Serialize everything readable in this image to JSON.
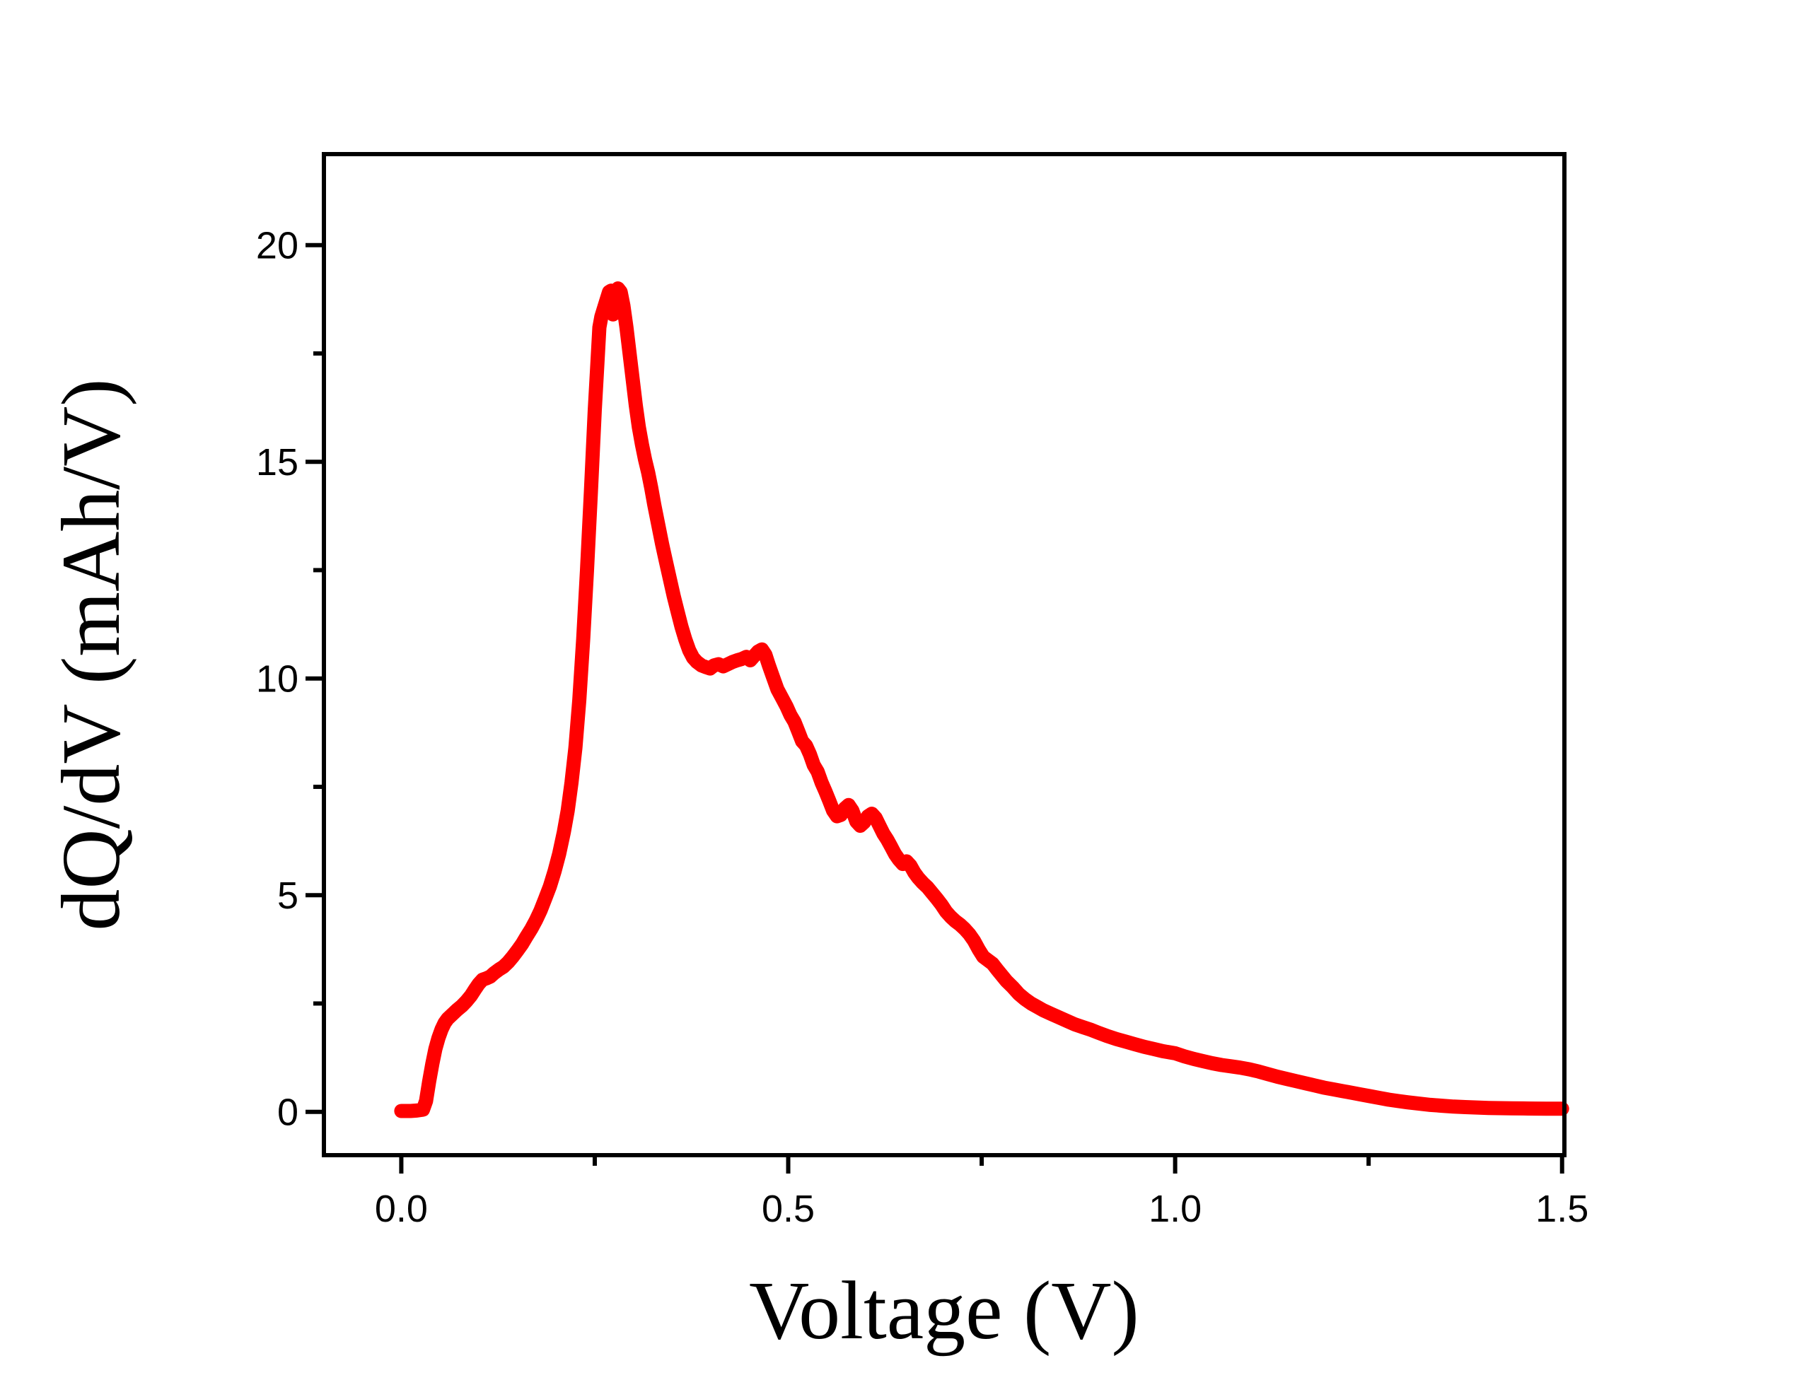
{
  "figure": {
    "background": "#FFFFFF",
    "axis_color": "#000000",
    "curve_color": "#FF0000"
  },
  "chart_data": {
    "type": "line",
    "title": "",
    "xlabel": "Voltage (V)",
    "ylabel": "dQ/dV (mAh/V)",
    "xlim": [
      -0.1,
      1.503
    ],
    "ylim": [
      -1.0,
      22.1
    ],
    "grid": false,
    "legend": null,
    "x_ticks": {
      "major": [
        {
          "v": 0.0,
          "label": "0.0"
        },
        {
          "v": 0.5,
          "label": "0.5"
        },
        {
          "v": 1.0,
          "label": "1.0"
        },
        {
          "v": 1.5,
          "label": "1.5"
        }
      ],
      "minor": [
        0.25,
        0.75,
        1.25
      ]
    },
    "y_ticks": {
      "major": [
        {
          "v": 0,
          "label": "0"
        },
        {
          "v": 5,
          "label": "5"
        },
        {
          "v": 10,
          "label": "10"
        },
        {
          "v": 15,
          "label": "15"
        },
        {
          "v": 20,
          "label": "20"
        }
      ],
      "minor": [
        2.5,
        7.5,
        12.5,
        17.5
      ]
    },
    "series": [
      {
        "name": "dQ/dV",
        "color": "#FF0000",
        "stroke_width": 20,
        "points": [
          [
            0.0,
            0.02
          ],
          [
            0.012,
            0.02
          ],
          [
            0.02,
            0.03
          ],
          [
            0.028,
            0.05
          ],
          [
            0.032,
            0.25
          ],
          [
            0.036,
            0.7
          ],
          [
            0.04,
            1.1
          ],
          [
            0.044,
            1.45
          ],
          [
            0.048,
            1.7
          ],
          [
            0.052,
            1.9
          ],
          [
            0.056,
            2.05
          ],
          [
            0.06,
            2.15
          ],
          [
            0.066,
            2.25
          ],
          [
            0.072,
            2.35
          ],
          [
            0.078,
            2.44
          ],
          [
            0.084,
            2.55
          ],
          [
            0.09,
            2.68
          ],
          [
            0.095,
            2.82
          ],
          [
            0.1,
            2.95
          ],
          [
            0.105,
            3.05
          ],
          [
            0.11,
            3.08
          ],
          [
            0.115,
            3.12
          ],
          [
            0.12,
            3.2
          ],
          [
            0.126,
            3.28
          ],
          [
            0.132,
            3.35
          ],
          [
            0.138,
            3.45
          ],
          [
            0.144,
            3.58
          ],
          [
            0.15,
            3.72
          ],
          [
            0.156,
            3.87
          ],
          [
            0.162,
            4.05
          ],
          [
            0.168,
            4.22
          ],
          [
            0.174,
            4.42
          ],
          [
            0.18,
            4.65
          ],
          [
            0.186,
            4.92
          ],
          [
            0.192,
            5.2
          ],
          [
            0.198,
            5.55
          ],
          [
            0.204,
            5.95
          ],
          [
            0.21,
            6.45
          ],
          [
            0.215,
            6.95
          ],
          [
            0.22,
            7.6
          ],
          [
            0.225,
            8.4
          ],
          [
            0.23,
            9.5
          ],
          [
            0.235,
            10.9
          ],
          [
            0.24,
            12.5
          ],
          [
            0.245,
            14.3
          ],
          [
            0.25,
            16.2
          ],
          [
            0.2535,
            17.3
          ],
          [
            0.256,
            18.1
          ],
          [
            0.2585,
            18.35
          ],
          [
            0.262,
            18.55
          ],
          [
            0.2655,
            18.75
          ],
          [
            0.2685,
            18.92
          ],
          [
            0.2712,
            18.95
          ],
          [
            0.2735,
            18.4
          ],
          [
            0.2765,
            18.8
          ],
          [
            0.28,
            19.0
          ],
          [
            0.2835,
            18.92
          ],
          [
            0.287,
            18.6
          ],
          [
            0.291,
            18.1
          ],
          [
            0.295,
            17.5
          ],
          [
            0.299,
            16.9
          ],
          [
            0.303,
            16.3
          ],
          [
            0.307,
            15.8
          ],
          [
            0.311,
            15.4
          ],
          [
            0.315,
            15.05
          ],
          [
            0.319,
            14.75
          ],
          [
            0.323,
            14.4
          ],
          [
            0.327,
            14.0
          ],
          [
            0.332,
            13.55
          ],
          [
            0.337,
            13.1
          ],
          [
            0.342,
            12.7
          ],
          [
            0.347,
            12.3
          ],
          [
            0.352,
            11.9
          ],
          [
            0.357,
            11.55
          ],
          [
            0.362,
            11.2
          ],
          [
            0.367,
            10.9
          ],
          [
            0.372,
            10.65
          ],
          [
            0.377,
            10.48
          ],
          [
            0.382,
            10.38
          ],
          [
            0.388,
            10.3
          ],
          [
            0.394,
            10.26
          ],
          [
            0.399,
            10.23
          ],
          [
            0.404,
            10.3
          ],
          [
            0.41,
            10.33
          ],
          [
            0.416,
            10.28
          ],
          [
            0.422,
            10.33
          ],
          [
            0.428,
            10.38
          ],
          [
            0.434,
            10.42
          ],
          [
            0.44,
            10.45
          ],
          [
            0.446,
            10.5
          ],
          [
            0.451,
            10.42
          ],
          [
            0.456,
            10.52
          ],
          [
            0.461,
            10.62
          ],
          [
            0.466,
            10.67
          ],
          [
            0.4705,
            10.55
          ],
          [
            0.475,
            10.3
          ],
          [
            0.48,
            10.05
          ],
          [
            0.486,
            9.75
          ],
          [
            0.492,
            9.55
          ],
          [
            0.498,
            9.35
          ],
          [
            0.503,
            9.15
          ],
          [
            0.508,
            9.0
          ],
          [
            0.513,
            8.78
          ],
          [
            0.518,
            8.55
          ],
          [
            0.523,
            8.45
          ],
          [
            0.528,
            8.25
          ],
          [
            0.533,
            8.0
          ],
          [
            0.538,
            7.85
          ],
          [
            0.543,
            7.6
          ],
          [
            0.548,
            7.4
          ],
          [
            0.553,
            7.18
          ],
          [
            0.558,
            6.95
          ],
          [
            0.563,
            6.82
          ],
          [
            0.568,
            6.85
          ],
          [
            0.573,
            7.0
          ],
          [
            0.578,
            7.08
          ],
          [
            0.583,
            6.95
          ],
          [
            0.588,
            6.7
          ],
          [
            0.593,
            6.6
          ],
          [
            0.598,
            6.68
          ],
          [
            0.603,
            6.82
          ],
          [
            0.608,
            6.88
          ],
          [
            0.613,
            6.78
          ],
          [
            0.618,
            6.6
          ],
          [
            0.623,
            6.42
          ],
          [
            0.628,
            6.28
          ],
          [
            0.633,
            6.12
          ],
          [
            0.638,
            5.95
          ],
          [
            0.643,
            5.82
          ],
          [
            0.648,
            5.72
          ],
          [
            0.653,
            5.78
          ],
          [
            0.658,
            5.68
          ],
          [
            0.663,
            5.52
          ],
          [
            0.668,
            5.4
          ],
          [
            0.674,
            5.28
          ],
          [
            0.68,
            5.18
          ],
          [
            0.686,
            5.05
          ],
          [
            0.692,
            4.92
          ],
          [
            0.698,
            4.78
          ],
          [
            0.704,
            4.62
          ],
          [
            0.71,
            4.5
          ],
          [
            0.716,
            4.4
          ],
          [
            0.722,
            4.32
          ],
          [
            0.728,
            4.22
          ],
          [
            0.734,
            4.1
          ],
          [
            0.74,
            3.95
          ],
          [
            0.746,
            3.75
          ],
          [
            0.752,
            3.58
          ],
          [
            0.758,
            3.5
          ],
          [
            0.764,
            3.42
          ],
          [
            0.77,
            3.28
          ],
          [
            0.776,
            3.15
          ],
          [
            0.782,
            3.02
          ],
          [
            0.79,
            2.88
          ],
          [
            0.798,
            2.72
          ],
          [
            0.806,
            2.6
          ],
          [
            0.814,
            2.5
          ],
          [
            0.822,
            2.42
          ],
          [
            0.83,
            2.34
          ],
          [
            0.84,
            2.26
          ],
          [
            0.85,
            2.18
          ],
          [
            0.86,
            2.1
          ],
          [
            0.87,
            2.02
          ],
          [
            0.88,
            1.96
          ],
          [
            0.89,
            1.9
          ],
          [
            0.9,
            1.83
          ],
          [
            0.912,
            1.75
          ],
          [
            0.924,
            1.68
          ],
          [
            0.936,
            1.62
          ],
          [
            0.948,
            1.56
          ],
          [
            0.96,
            1.5
          ],
          [
            0.972,
            1.45
          ],
          [
            0.984,
            1.4
          ],
          [
            1.0,
            1.35
          ],
          [
            1.012,
            1.28
          ],
          [
            1.024,
            1.22
          ],
          [
            1.036,
            1.17
          ],
          [
            1.048,
            1.12
          ],
          [
            1.06,
            1.08
          ],
          [
            1.072,
            1.05
          ],
          [
            1.084,
            1.02
          ],
          [
            1.096,
            0.98
          ],
          [
            1.108,
            0.93
          ],
          [
            1.12,
            0.87
          ],
          [
            1.132,
            0.81
          ],
          [
            1.144,
            0.76
          ],
          [
            1.156,
            0.71
          ],
          [
            1.168,
            0.66
          ],
          [
            1.18,
            0.61
          ],
          [
            1.192,
            0.56
          ],
          [
            1.204,
            0.52
          ],
          [
            1.216,
            0.48
          ],
          [
            1.228,
            0.44
          ],
          [
            1.24,
            0.4
          ],
          [
            1.252,
            0.36
          ],
          [
            1.264,
            0.32
          ],
          [
            1.276,
            0.28
          ],
          [
            1.288,
            0.25
          ],
          [
            1.3,
            0.22
          ],
          [
            1.315,
            0.19
          ],
          [
            1.33,
            0.16
          ],
          [
            1.345,
            0.14
          ],
          [
            1.36,
            0.12
          ],
          [
            1.375,
            0.11
          ],
          [
            1.39,
            0.1
          ],
          [
            1.405,
            0.09
          ],
          [
            1.42,
            0.085
          ],
          [
            1.435,
            0.08
          ],
          [
            1.45,
            0.078
          ],
          [
            1.465,
            0.075
          ],
          [
            1.48,
            0.073
          ],
          [
            1.5,
            0.072
          ]
        ]
      }
    ]
  }
}
